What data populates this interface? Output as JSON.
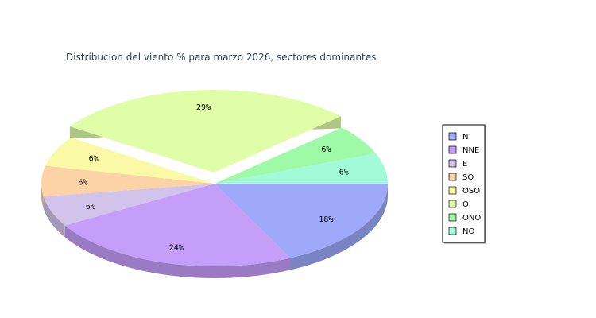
{
  "chart_data": {
    "type": "pie",
    "title": "Distribucion del viento % para marzo 2026, sectores dominantes",
    "categories": [
      "N",
      "NNE",
      "E",
      "SO",
      "OSO",
      "O",
      "ONO",
      "NO"
    ],
    "values": [
      18,
      24,
      6,
      6,
      6,
      29,
      6,
      6
    ],
    "labels": [
      "18%",
      "24%",
      "6%",
      "6%",
      "6%",
      "29%",
      "6%",
      "6%"
    ],
    "colors": [
      "#9ea9fa",
      "#c59efa",
      "#d2c3ea",
      "#fdd2a4",
      "#fafaa6",
      "#e0fea7",
      "#9efaa6",
      "#a2fad8"
    ],
    "exploded": "O",
    "legend": "right"
  }
}
